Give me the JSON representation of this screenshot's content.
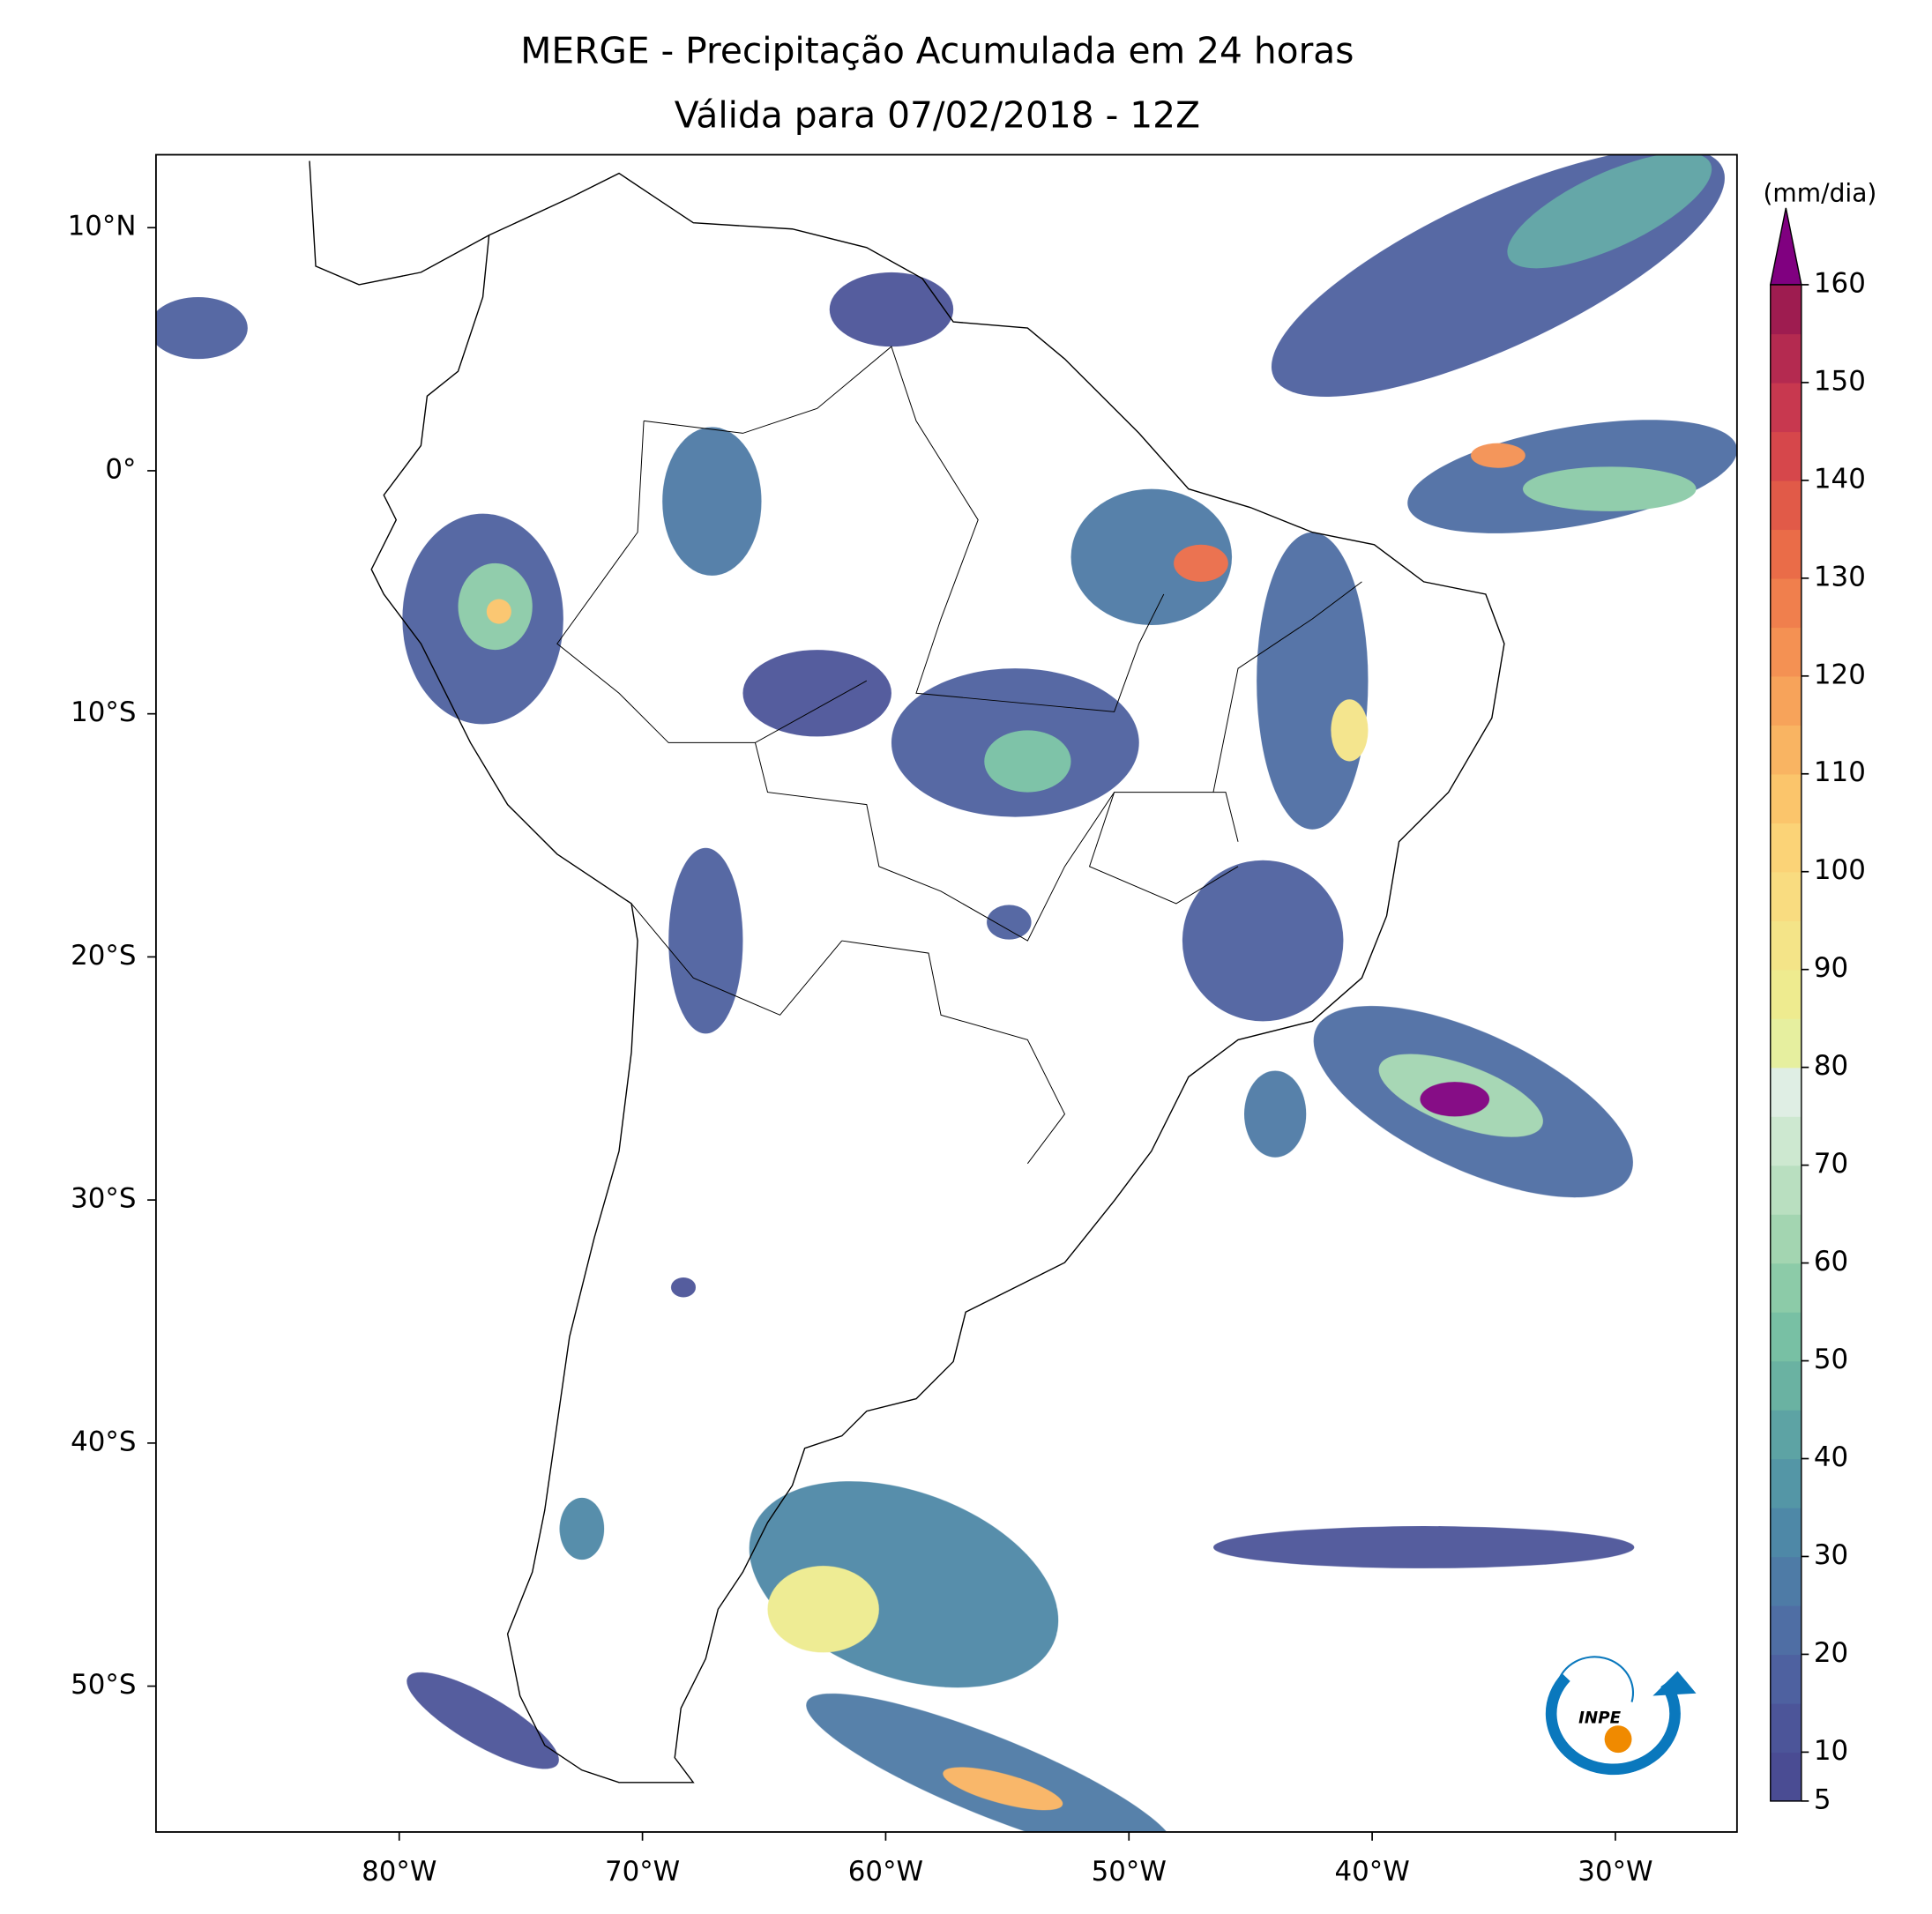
{
  "title": "MERGE - Precipitação Acumulada em 24 horas",
  "subtitle": "Válida para 07/02/2018 - 12Z",
  "map": {
    "xlim": [
      -90,
      -25
    ],
    "ylim": [
      -56,
      13
    ],
    "xticks": [
      {
        "value": -80,
        "label": "80°W"
      },
      {
        "value": -70,
        "label": "70°W"
      },
      {
        "value": -60,
        "label": "60°W"
      },
      {
        "value": -50,
        "label": "50°W"
      },
      {
        "value": -40,
        "label": "40°W"
      },
      {
        "value": -30,
        "label": "30°W"
      }
    ],
    "yticks": [
      {
        "value": 10,
        "label": "10°N"
      },
      {
        "value": 0,
        "label": "0°"
      },
      {
        "value": -10,
        "label": "10°S"
      },
      {
        "value": -20,
        "label": "20°S"
      },
      {
        "value": -30,
        "label": "30°S"
      },
      {
        "value": -40,
        "label": "40°S"
      },
      {
        "value": -50,
        "label": "50°S"
      }
    ]
  },
  "colorbar": {
    "label": "(mm/dia)",
    "lim": [
      5,
      160
    ],
    "ticks": [
      5,
      10,
      20,
      30,
      40,
      50,
      60,
      70,
      80,
      90,
      100,
      110,
      120,
      130,
      140,
      150,
      160
    ],
    "colors": [
      "#4a4c93",
      "#4c5599",
      "#4e61a0",
      "#4f6ea4",
      "#4e7ba6",
      "#4e88a7",
      "#5496a6",
      "#5da3a4",
      "#6ab2a2",
      "#78c0a4",
      "#8ccba8",
      "#a3d5b1",
      "#b9dfc0",
      "#cde8d0",
      "#dfeee4",
      "#e6ef9f",
      "#eeeb8f",
      "#f4e488",
      "#f9dc80",
      "#fbd377",
      "#fbc56b",
      "#f9b462",
      "#f7a35a",
      "#f49153",
      "#f07f4d",
      "#ea6c48",
      "#e15a48",
      "#d6474b",
      "#c8384f",
      "#b42a50",
      "#9e1c50"
    ],
    "extend_color": "#800080"
  },
  "logo": {
    "text": "INPE"
  }
}
